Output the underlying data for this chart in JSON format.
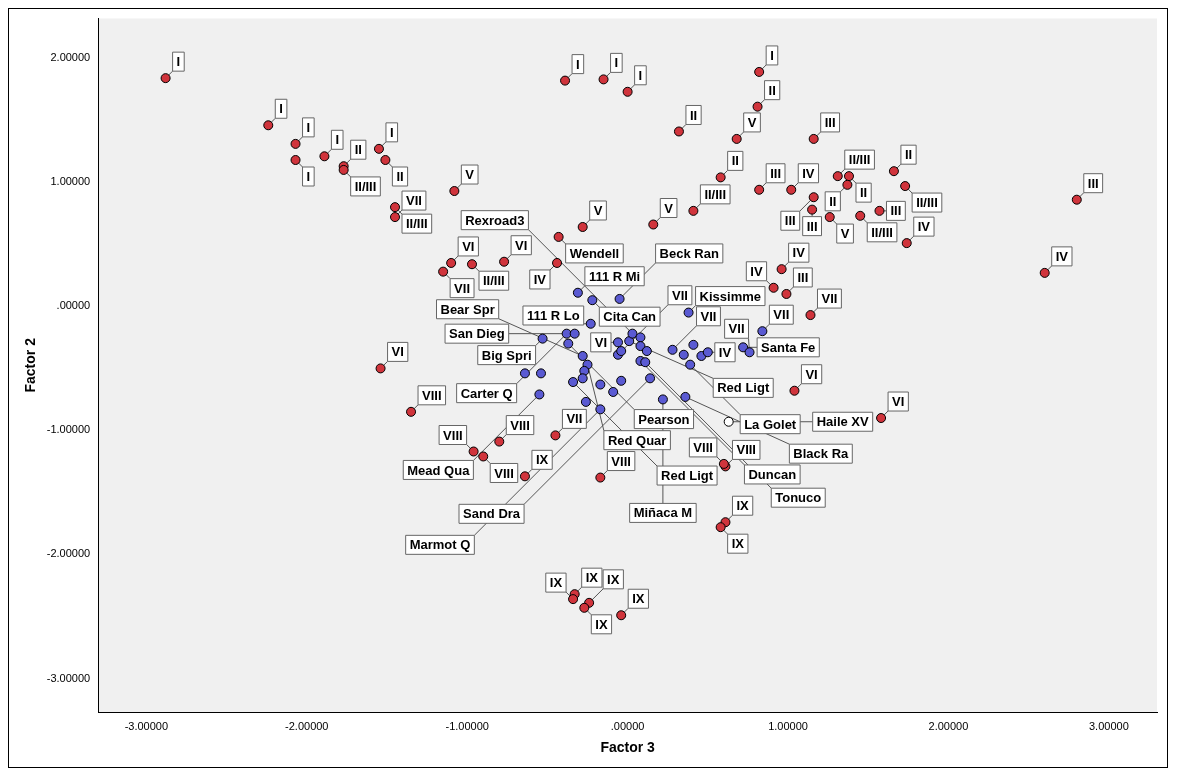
{
  "chart_data": {
    "type": "scatter",
    "xlabel": "Factor 3",
    "ylabel": "Factor 2",
    "marker": "circle",
    "legend": false,
    "grid": false,
    "xlim": [
      -3.3,
      3.3
    ],
    "ylim": [
      -3.27,
      2.32
    ],
    "xticks": [
      {
        "value": -3,
        "label": "-3.00000"
      },
      {
        "value": -2,
        "label": "-2.00000"
      },
      {
        "value": -1,
        "label": "-1.00000"
      },
      {
        "value": 0,
        "label": ".00000"
      },
      {
        "value": 1,
        "label": "1.00000"
      },
      {
        "value": 2,
        "label": "2.00000"
      },
      {
        "value": 3,
        "label": "3.00000"
      }
    ],
    "yticks": [
      {
        "value": -3,
        "label": "-3.00000"
      },
      {
        "value": -2,
        "label": "-2.00000"
      },
      {
        "value": -1,
        "label": "-1.00000"
      },
      {
        "value": 0,
        "label": ".00000"
      },
      {
        "value": 1,
        "label": "1.00000"
      },
      {
        "value": 2,
        "label": "2.00000"
      }
    ],
    "series": [
      {
        "color": "#d0343c",
        "x": [
          -2.88,
          -2.24,
          -2.07,
          -2.07,
          -1.89,
          -1.77,
          -1.77,
          -1.55,
          -1.51,
          -1.08,
          -1.45,
          -1.45,
          -1.1,
          -1.15,
          -0.97,
          -0.77,
          -0.44,
          -0.43,
          -0.28,
          0.16,
          -0.39,
          -0.15,
          0.0,
          0.82,
          0.81,
          0.68,
          0.32,
          0.58,
          0.41,
          0.82,
          1.02,
          1.16,
          1.31,
          1.38,
          1.37,
          1.66,
          1.73,
          1.16,
          1.15,
          1.26,
          1.45,
          1.57,
          1.74,
          2.8,
          2.6,
          0.96,
          0.91,
          0.99,
          1.14,
          1.04,
          1.58,
          0.61,
          0.6,
          -0.17,
          0.61,
          0.58,
          -1.54,
          -1.35,
          -0.8,
          -0.96,
          -0.9,
          -0.64,
          -0.45,
          -0.33,
          -0.34,
          -0.24,
          -0.27,
          -0.04
        ],
        "values": [
          1.84,
          1.46,
          1.31,
          1.18,
          1.21,
          1.13,
          1.1,
          1.27,
          1.18,
          0.93,
          0.8,
          0.72,
          0.35,
          0.28,
          0.34,
          0.36,
          0.35,
          0.56,
          0.64,
          0.66,
          1.82,
          1.83,
          1.73,
          1.89,
          1.61,
          1.35,
          1.41,
          1.04,
          0.77,
          0.94,
          0.94,
          1.35,
          1.05,
          1.05,
          0.98,
          1.09,
          0.97,
          0.88,
          0.78,
          0.72,
          0.73,
          0.77,
          0.51,
          0.86,
          0.27,
          0.3,
          0.15,
          0.1,
          -0.07,
          -0.68,
          -0.9,
          -1.29,
          -1.27,
          -1.38,
          -1.74,
          -1.78,
          -0.5,
          -0.85,
          -1.09,
          -1.17,
          -1.21,
          -1.37,
          -1.04,
          -2.32,
          -2.36,
          -2.39,
          -2.43,
          -2.49
        ]
      },
      {
        "color": "#5a5ad2",
        "x": [
          -0.31,
          -0.22,
          -0.05,
          -0.23,
          0.38,
          0.84,
          -0.53,
          -0.38,
          -0.33,
          -0.37,
          -0.28,
          -0.06,
          0.01,
          0.03,
          0.08,
          0.08,
          0.12,
          -0.06,
          -0.04,
          0.28,
          0.41,
          0.35,
          0.46,
          0.5,
          0.72,
          0.76,
          0.39,
          0.08,
          0.11,
          -0.25,
          -0.27,
          -0.28,
          -0.34,
          -0.55,
          -0.64,
          -0.54,
          -0.17,
          -0.09,
          -0.04,
          0.14,
          0.22,
          0.36,
          -0.17,
          -0.26
        ],
        "values": [
          0.11,
          0.05,
          0.06,
          -0.14,
          -0.05,
          -0.2,
          -0.26,
          -0.22,
          -0.22,
          -0.3,
          -0.4,
          -0.29,
          -0.28,
          -0.22,
          -0.25,
          -0.32,
          -0.36,
          -0.39,
          -0.36,
          -0.35,
          -0.31,
          -0.39,
          -0.4,
          -0.37,
          -0.33,
          -0.37,
          -0.47,
          -0.44,
          -0.45,
          -0.47,
          -0.52,
          -0.58,
          -0.61,
          -0.71,
          -0.54,
          -0.54,
          -0.63,
          -0.69,
          -0.6,
          -0.58,
          -0.75,
          -0.73,
          -0.83,
          -0.77
        ]
      },
      {
        "color": "#ffffff",
        "x": [
          0.63
        ],
        "values": [
          -0.93
        ]
      }
    ],
    "annotations": [
      {
        "text": "I",
        "x": -2.88,
        "y": 1.84
      },
      {
        "text": "I",
        "x": -2.24,
        "y": 1.46
      },
      {
        "text": "I",
        "x": -2.07,
        "y": 1.31
      },
      {
        "text": "I",
        "x": -2.07,
        "y": 1.18
      },
      {
        "text": "I",
        "x": -1.89,
        "y": 1.21
      },
      {
        "text": "II",
        "x": -1.77,
        "y": 1.13
      },
      {
        "text": "II/III",
        "x": -1.77,
        "y": 1.1
      },
      {
        "text": "I",
        "x": -1.55,
        "y": 1.27
      },
      {
        "text": "II",
        "x": -1.51,
        "y": 1.18
      },
      {
        "text": "V",
        "x": -1.08,
        "y": 0.93
      },
      {
        "text": "II/III",
        "x": -1.45,
        "y": 0.8
      },
      {
        "text": "VII",
        "x": -1.45,
        "y": 0.72
      },
      {
        "text": "VI",
        "x": -1.1,
        "y": 0.35
      },
      {
        "text": "VII",
        "x": -1.15,
        "y": 0.28
      },
      {
        "text": "II/III",
        "x": -0.97,
        "y": 0.34
      },
      {
        "text": "VI",
        "x": -0.77,
        "y": 0.36
      },
      {
        "text": "IV",
        "x": -0.44,
        "y": 0.35
      },
      {
        "text": "Wendell",
        "x": -0.43,
        "y": 0.56
      },
      {
        "text": "V",
        "x": -0.28,
        "y": 0.64
      },
      {
        "text": "V",
        "x": 0.16,
        "y": 0.66
      },
      {
        "text": "I",
        "x": -0.39,
        "y": 1.82
      },
      {
        "text": "I",
        "x": -0.15,
        "y": 1.83
      },
      {
        "text": "I",
        "x": 0.0,
        "y": 1.73
      },
      {
        "text": "I",
        "x": 0.82,
        "y": 1.89
      },
      {
        "text": "II",
        "x": 0.81,
        "y": 1.61
      },
      {
        "text": "V",
        "x": 0.68,
        "y": 1.35
      },
      {
        "text": "II",
        "x": 0.32,
        "y": 1.41
      },
      {
        "text": "II",
        "x": 0.58,
        "y": 1.04
      },
      {
        "text": "II/III",
        "x": 0.41,
        "y": 0.77
      },
      {
        "text": "III",
        "x": 0.82,
        "y": 0.94
      },
      {
        "text": "IV",
        "x": 1.02,
        "y": 0.94
      },
      {
        "text": "III",
        "x": 1.16,
        "y": 1.35
      },
      {
        "text": "II/III",
        "x": 1.31,
        "y": 1.05
      },
      {
        "text": "II",
        "x": 1.38,
        "y": 1.05
      },
      {
        "text": "II",
        "x": 1.37,
        "y": 0.98
      },
      {
        "text": "II",
        "x": 1.66,
        "y": 1.09
      },
      {
        "text": "II/III",
        "x": 1.73,
        "y": 0.97
      },
      {
        "text": "III",
        "x": 1.16,
        "y": 0.88
      },
      {
        "text": "III",
        "x": 1.15,
        "y": 0.78
      },
      {
        "text": "V",
        "x": 1.26,
        "y": 0.72
      },
      {
        "text": "II/III",
        "x": 1.45,
        "y": 0.73
      },
      {
        "text": "III",
        "x": 1.57,
        "y": 0.77
      },
      {
        "text": "IV",
        "x": 1.74,
        "y": 0.51
      },
      {
        "text": "III",
        "x": 2.8,
        "y": 0.86
      },
      {
        "text": "IV",
        "x": 2.6,
        "y": 0.27
      },
      {
        "text": "IV",
        "x": 0.96,
        "y": 0.3
      },
      {
        "text": "IV",
        "x": 0.91,
        "y": 0.15
      },
      {
        "text": "III",
        "x": 0.99,
        "y": 0.1
      },
      {
        "text": "VII",
        "x": 1.14,
        "y": -0.07
      },
      {
        "text": "VI",
        "x": 1.04,
        "y": -0.68
      },
      {
        "text": "VI",
        "x": 1.58,
        "y": -0.9
      },
      {
        "text": "VIII",
        "x": 0.61,
        "y": -1.29
      },
      {
        "text": "VIII",
        "x": 0.6,
        "y": -1.27
      },
      {
        "text": "VIII",
        "x": -0.17,
        "y": -1.38
      },
      {
        "text": "IX",
        "x": 0.61,
        "y": -1.74
      },
      {
        "text": "IX",
        "x": 0.58,
        "y": -1.78
      },
      {
        "text": "VI",
        "x": -1.54,
        "y": -0.5
      },
      {
        "text": "VIII",
        "x": -1.35,
        "y": -0.85
      },
      {
        "text": "VIII",
        "x": -0.8,
        "y": -1.09
      },
      {
        "text": "VIII",
        "x": -0.96,
        "y": -1.17
      },
      {
        "text": "VIII",
        "x": -0.9,
        "y": -1.21
      },
      {
        "text": "IX",
        "x": -0.64,
        "y": -1.37
      },
      {
        "text": "VII",
        "x": -0.45,
        "y": -1.04
      },
      {
        "text": "IX",
        "x": -0.33,
        "y": -2.32
      },
      {
        "text": "IX",
        "x": -0.34,
        "y": -2.36
      },
      {
        "text": "IX",
        "x": -0.24,
        "y": -2.39
      },
      {
        "text": "IX",
        "x": -0.27,
        "y": -2.43
      },
      {
        "text": "IX",
        "x": -0.04,
        "y": -2.49
      },
      {
        "text": "111 R Mi",
        "x": -0.31,
        "y": 0.11
      },
      {
        "text": "Cita Can",
        "x": -0.22,
        "y": 0.05
      },
      {
        "text": "Beck Ran",
        "x": -0.05,
        "y": 0.06
      },
      {
        "text": "111 R Lo",
        "x": -0.23,
        "y": -0.14
      },
      {
        "text": "Kissimme",
        "x": 0.38,
        "y": -0.05
      },
      {
        "text": "VII",
        "x": 0.84,
        "y": -0.2
      },
      {
        "text": "Big Spri",
        "x": -0.53,
        "y": -0.26
      },
      {
        "text": "Carter Q",
        "x": -0.38,
        "y": -0.22
      },
      {
        "text": "San Dieg",
        "x": -0.33,
        "y": -0.22
      },
      {
        "text": "Pearson",
        "x": -0.37,
        "y": -0.3
      },
      {
        "text": "Bear Spr",
        "x": -0.28,
        "y": -0.4
      },
      {
        "text": "VI",
        "x": -0.06,
        "y": -0.29
      },
      {
        "text": "Red Ligt",
        "x": 0.01,
        "y": -0.28
      },
      {
        "text": "Rexroad3",
        "x": 0.03,
        "y": -0.22
      },
      {
        "text": "VII",
        "x": -0.06,
        "y": -0.39
      },
      {
        "text": "VII",
        "x": 0.28,
        "y": -0.35
      },
      {
        "text": "IV",
        "x": 0.5,
        "y": -0.37
      },
      {
        "text": "Santa Fe",
        "x": 0.72,
        "y": -0.33
      },
      {
        "text": "VII",
        "x": 0.76,
        "y": -0.37
      },
      {
        "text": "La Golet",
        "x": 0.39,
        "y": -0.47
      },
      {
        "text": "Duncan",
        "x": 0.08,
        "y": -0.44
      },
      {
        "text": "Tonuco",
        "x": 0.11,
        "y": -0.45
      },
      {
        "text": "Red Quar",
        "x": -0.25,
        "y": -0.47
      },
      {
        "text": "Red Ligt",
        "x": -0.34,
        "y": -0.61
      },
      {
        "text": "Mead Qua",
        "x": -0.55,
        "y": -0.71
      },
      {
        "text": "Sand Dra",
        "x": 0.14,
        "y": -0.58
      },
      {
        "text": "Miñaca M",
        "x": 0.22,
        "y": -0.75
      },
      {
        "text": "Black Ra",
        "x": 0.36,
        "y": -0.73
      },
      {
        "text": "Marmot Q",
        "x": -0.17,
        "y": -0.83
      },
      {
        "text": "Haile XV",
        "x": 0.63,
        "y": -0.93
      }
    ]
  }
}
